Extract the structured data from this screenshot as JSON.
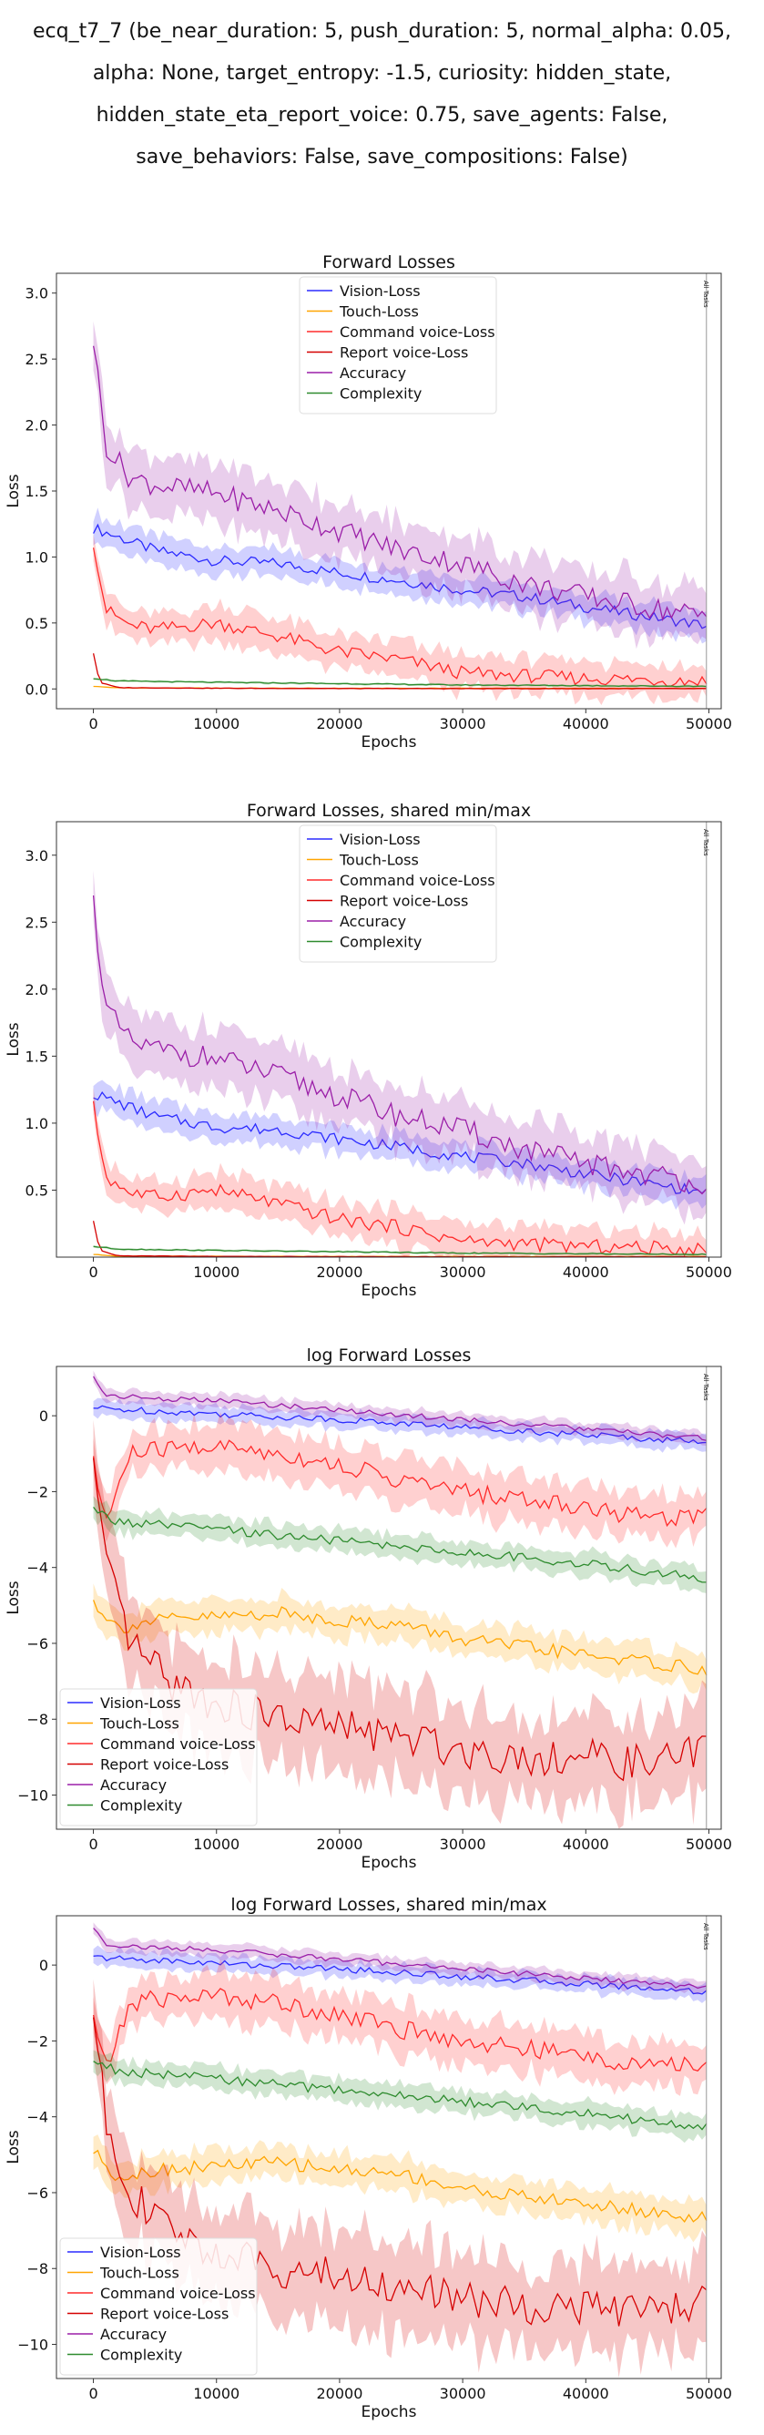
{
  "suptitle_lines": [
    "ecq_t7_7 (be_near_duration: 5, push_duration: 5, normal_alpha: 0.05,",
    "alpha: None, target_entropy: -1.5, curiosity: hidden_state,",
    "hidden_state_eta_report_voice: 0.75, save_agents: False,",
    "save_behaviors: False, save_compositions: False)"
  ],
  "vline_label": "All Tasks",
  "colors": {
    "Vision-Loss": "#2b2bff",
    "Touch-Loss": "#ffa500",
    "Command voice-Loss": "#ff2b2b",
    "Report voice-Loss": "#d50000",
    "Accuracy": "#9b1fa8",
    "Complexity": "#2e8b2e"
  },
  "chart_data": [
    {
      "type": "line",
      "title": "Forward Losses",
      "xlabel": "Epochs",
      "ylabel": "Loss",
      "xlim": [
        -3000,
        51000
      ],
      "ylim": [
        -0.15,
        3.15
      ],
      "xticks": [
        0,
        10000,
        20000,
        30000,
        40000,
        50000
      ],
      "yticks": [
        0.0,
        0.5,
        1.0,
        1.5,
        2.0,
        2.5,
        3.0
      ],
      "ytick_labels": [
        "0.0",
        "0.5",
        "1.0",
        "1.5",
        "2.0",
        "2.5",
        "3.0"
      ],
      "legend_position": "upper center",
      "vline_x": 49800,
      "log": false,
      "series": [
        {
          "name": "Vision-Loss",
          "x": [
            0,
            5000,
            10000,
            15000,
            20000,
            25000,
            30000,
            35000,
            40000,
            45000,
            49800
          ],
          "y": [
            1.22,
            1.05,
            0.97,
            0.95,
            0.88,
            0.82,
            0.75,
            0.7,
            0.62,
            0.55,
            0.48
          ],
          "spread": 0.12
        },
        {
          "name": "Touch-Loss",
          "x": [
            0,
            2000,
            10000,
            20000,
            30000,
            40000,
            49800
          ],
          "y": [
            0.02,
            0.008,
            0.006,
            0.005,
            0.005,
            0.004,
            0.004
          ],
          "spread": 0.004
        },
        {
          "name": "Command voice-Loss",
          "x": [
            0,
            1000,
            3000,
            5000,
            10000,
            15000,
            20000,
            25000,
            30000,
            35000,
            40000,
            45000,
            49800
          ],
          "y": [
            1.12,
            0.6,
            0.48,
            0.45,
            0.5,
            0.4,
            0.28,
            0.22,
            0.12,
            0.1,
            0.08,
            0.07,
            0.06
          ],
          "spread": 0.15
        },
        {
          "name": "Report voice-Loss",
          "x": [
            0,
            500,
            2000,
            10000,
            20000,
            30000,
            40000,
            49800
          ],
          "y": [
            0.27,
            0.05,
            0.01,
            0.005,
            0.003,
            0.002,
            0.002,
            0.002
          ],
          "spread": 0.005
        },
        {
          "name": "Accuracy",
          "x": [
            0,
            1000,
            3000,
            5000,
            10000,
            15000,
            20000,
            25000,
            30000,
            35000,
            40000,
            45000,
            49800
          ],
          "y": [
            2.65,
            1.85,
            1.6,
            1.55,
            1.48,
            1.35,
            1.2,
            1.05,
            0.95,
            0.8,
            0.7,
            0.62,
            0.55
          ],
          "spread": 0.25
        },
        {
          "name": "Complexity",
          "x": [
            0,
            2000,
            10000,
            20000,
            30000,
            40000,
            49800
          ],
          "y": [
            0.08,
            0.06,
            0.05,
            0.04,
            0.03,
            0.025,
            0.02
          ],
          "spread": 0.01
        }
      ]
    },
    {
      "type": "line",
      "title": "Forward Losses, shared min/max",
      "xlabel": "Epochs",
      "ylabel": "Loss",
      "xlim": [
        -3000,
        51000
      ],
      "ylim": [
        0.0,
        3.25
      ],
      "xticks": [
        0,
        10000,
        20000,
        30000,
        40000,
        50000
      ],
      "yticks": [
        0.5,
        1.0,
        1.5,
        2.0,
        2.5,
        3.0
      ],
      "ytick_labels": [
        "0.5",
        "1.0",
        "1.5",
        "2.0",
        "2.5",
        "3.0"
      ],
      "legend_position": "upper center",
      "vline_x": 49800,
      "log": false,
      "series": [
        {
          "name": "Vision-Loss",
          "x": [
            0,
            5000,
            10000,
            15000,
            20000,
            25000,
            30000,
            35000,
            40000,
            45000,
            49800
          ],
          "y": [
            1.22,
            1.05,
            0.97,
            0.95,
            0.88,
            0.82,
            0.75,
            0.7,
            0.62,
            0.55,
            0.48
          ],
          "spread": 0.12
        },
        {
          "name": "Touch-Loss",
          "x": [
            0,
            2000,
            10000,
            20000,
            30000,
            40000,
            49800
          ],
          "y": [
            0.02,
            0.008,
            0.006,
            0.005,
            0.005,
            0.004,
            0.004
          ],
          "spread": 0.004
        },
        {
          "name": "Command voice-Loss",
          "x": [
            0,
            1000,
            3000,
            5000,
            10000,
            15000,
            20000,
            25000,
            30000,
            35000,
            40000,
            45000,
            49800
          ],
          "y": [
            1.12,
            0.6,
            0.48,
            0.45,
            0.5,
            0.4,
            0.28,
            0.22,
            0.12,
            0.1,
            0.08,
            0.07,
            0.06
          ],
          "spread": 0.15
        },
        {
          "name": "Report voice-Loss",
          "x": [
            0,
            500,
            2000,
            10000,
            20000,
            30000,
            40000,
            49800
          ],
          "y": [
            0.27,
            0.05,
            0.01,
            0.005,
            0.003,
            0.002,
            0.002,
            0.002
          ],
          "spread": 0.005
        },
        {
          "name": "Accuracy",
          "x": [
            0,
            1000,
            3000,
            5000,
            10000,
            15000,
            20000,
            25000,
            30000,
            35000,
            40000,
            45000,
            49800
          ],
          "y": [
            2.65,
            1.85,
            1.6,
            1.55,
            1.48,
            1.35,
            1.2,
            1.05,
            0.95,
            0.8,
            0.7,
            0.62,
            0.55
          ],
          "spread": 0.25
        },
        {
          "name": "Complexity",
          "x": [
            0,
            2000,
            10000,
            20000,
            30000,
            40000,
            49800
          ],
          "y": [
            0.08,
            0.06,
            0.05,
            0.04,
            0.03,
            0.025,
            0.02
          ],
          "spread": 0.01
        }
      ]
    },
    {
      "type": "line",
      "title": "log Forward Losses",
      "xlabel": "Epochs",
      "ylabel": "Loss",
      "xlim": [
        -3000,
        51000
      ],
      "ylim": [
        -10.9,
        1.3
      ],
      "xticks": [
        0,
        10000,
        20000,
        30000,
        40000,
        50000
      ],
      "yticks": [
        -10,
        -8,
        -6,
        -4,
        -2,
        0
      ],
      "ytick_labels": [
        "−10",
        "−8",
        "−6",
        "−4",
        "−2",
        "0"
      ],
      "legend_position": "lower left",
      "vline_x": 49800,
      "log": true,
      "series": [
        {
          "name": "Vision-Loss",
          "x": [
            0,
            10000,
            20000,
            30000,
            40000,
            49800
          ],
          "y": [
            0.2,
            0.05,
            -0.1,
            -0.3,
            -0.5,
            -0.7
          ],
          "spread": 0.25
        },
        {
          "name": "Touch-Loss",
          "x": [
            0,
            2000,
            5000,
            10000,
            15000,
            20000,
            25000,
            30000,
            35000,
            40000,
            45000,
            49800
          ],
          "y": [
            -4.9,
            -5.6,
            -5.4,
            -5.3,
            -5.2,
            -5.4,
            -5.5,
            -5.9,
            -6.1,
            -6.3,
            -6.5,
            -6.7
          ],
          "spread": 0.5
        },
        {
          "name": "Command voice-Loss",
          "x": [
            0,
            1000,
            3000,
            5000,
            10000,
            15000,
            20000,
            25000,
            30000,
            35000,
            40000,
            45000,
            49800
          ],
          "y": [
            -1.3,
            -2.8,
            -1.0,
            -0.9,
            -0.8,
            -1.0,
            -1.3,
            -1.7,
            -2.0,
            -2.2,
            -2.4,
            -2.7,
            -2.6
          ],
          "spread": 0.7
        },
        {
          "name": "Report voice-Loss",
          "x": [
            0,
            1000,
            3000,
            6000,
            10000,
            15000,
            20000,
            25000,
            30000,
            35000,
            40000,
            45000,
            49800
          ],
          "y": [
            -1.3,
            -4.0,
            -6.0,
            -7.0,
            -7.6,
            -8.0,
            -8.2,
            -8.5,
            -8.8,
            -9.0,
            -9.0,
            -9.2,
            -8.8
          ],
          "spread": 1.4
        },
        {
          "name": "Accuracy",
          "x": [
            0,
            1000,
            5000,
            10000,
            20000,
            30000,
            40000,
            49800
          ],
          "y": [
            1.0,
            0.55,
            0.45,
            0.4,
            0.15,
            -0.1,
            -0.35,
            -0.6
          ],
          "spread": 0.2
        },
        {
          "name": "Complexity",
          "x": [
            0,
            2000,
            10000,
            20000,
            30000,
            40000,
            49800
          ],
          "y": [
            -2.5,
            -2.8,
            -3.0,
            -3.3,
            -3.6,
            -3.9,
            -4.3
          ],
          "spread": 0.35
        }
      ]
    },
    {
      "type": "line",
      "title": "log Forward Losses, shared min/max",
      "xlabel": "Epochs",
      "ylabel": "Loss",
      "xlim": [
        -3000,
        51000
      ],
      "ylim": [
        -10.9,
        1.3
      ],
      "xticks": [
        0,
        10000,
        20000,
        30000,
        40000,
        50000
      ],
      "yticks": [
        -10,
        -8,
        -6,
        -4,
        -2,
        0
      ],
      "ytick_labels": [
        "−10",
        "−8",
        "−6",
        "−4",
        "−2",
        "0"
      ],
      "legend_position": "lower left",
      "vline_x": 49800,
      "log": true,
      "series": [
        {
          "name": "Vision-Loss",
          "x": [
            0,
            10000,
            20000,
            30000,
            40000,
            49800
          ],
          "y": [
            0.2,
            0.05,
            -0.1,
            -0.3,
            -0.5,
            -0.7
          ],
          "spread": 0.25
        },
        {
          "name": "Touch-Loss",
          "x": [
            0,
            2000,
            5000,
            10000,
            15000,
            20000,
            25000,
            30000,
            35000,
            40000,
            45000,
            49800
          ],
          "y": [
            -4.9,
            -5.6,
            -5.4,
            -5.3,
            -5.2,
            -5.4,
            -5.5,
            -5.9,
            -6.1,
            -6.3,
            -6.5,
            -6.7
          ],
          "spread": 0.5
        },
        {
          "name": "Command voice-Loss",
          "x": [
            0,
            1000,
            3000,
            5000,
            10000,
            15000,
            20000,
            25000,
            30000,
            35000,
            40000,
            45000,
            49800
          ],
          "y": [
            -1.3,
            -2.8,
            -1.0,
            -0.9,
            -0.8,
            -1.0,
            -1.3,
            -1.7,
            -2.0,
            -2.2,
            -2.4,
            -2.7,
            -2.6
          ],
          "spread": 0.7
        },
        {
          "name": "Report voice-Loss",
          "x": [
            0,
            1000,
            3000,
            6000,
            10000,
            15000,
            20000,
            25000,
            30000,
            35000,
            40000,
            45000,
            49800
          ],
          "y": [
            -1.3,
            -4.0,
            -6.0,
            -7.0,
            -7.6,
            -8.0,
            -8.2,
            -8.5,
            -8.8,
            -9.0,
            -9.0,
            -9.2,
            -8.8
          ],
          "spread": 1.4
        },
        {
          "name": "Accuracy",
          "x": [
            0,
            1000,
            5000,
            10000,
            20000,
            30000,
            40000,
            49800
          ],
          "y": [
            1.0,
            0.55,
            0.45,
            0.4,
            0.15,
            -0.1,
            -0.35,
            -0.6
          ],
          "spread": 0.2
        },
        {
          "name": "Complexity",
          "x": [
            0,
            2000,
            10000,
            20000,
            30000,
            40000,
            49800
          ],
          "y": [
            -2.5,
            -2.8,
            -3.0,
            -3.3,
            -3.6,
            -3.9,
            -4.3
          ],
          "spread": 0.35
        }
      ]
    }
  ]
}
